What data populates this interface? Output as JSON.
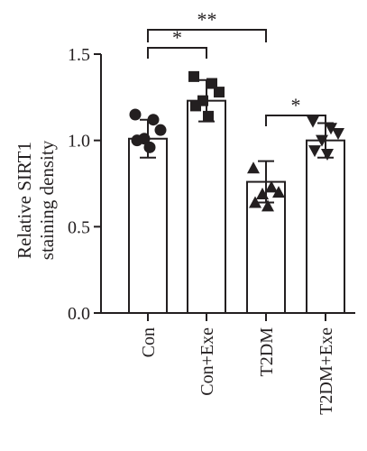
{
  "chart_data": {
    "type": "bar",
    "categories": [
      "Con",
      "Con+Exe",
      "T2DM",
      "T2DM+Exe"
    ],
    "values": [
      1.01,
      1.23,
      0.76,
      1.0
    ],
    "errors": [
      0.11,
      0.12,
      0.12,
      0.1
    ],
    "points": [
      [
        1.15,
        1.12,
        1.06,
        1.01,
        1.0,
        0.96
      ],
      [
        1.37,
        1.33,
        1.28,
        1.23,
        1.2,
        1.14
      ],
      [
        0.84,
        0.73,
        0.7,
        0.69,
        0.64,
        0.62
      ],
      [
        1.11,
        1.07,
        1.04,
        1.0,
        0.94,
        0.92
      ]
    ],
    "markers": [
      "circle",
      "square",
      "triangle-up",
      "triangle-down"
    ],
    "ylabel_lines": [
      "Relative SIRT1",
      "staining density"
    ],
    "ylim": [
      0.0,
      1.5
    ],
    "yticks": [
      "0.0",
      "0.5",
      "1.0",
      "1.5"
    ],
    "significance": [
      {
        "from": 0,
        "to": 1,
        "label": "*",
        "level": 1
      },
      {
        "from": 0,
        "to": 2,
        "label": "**",
        "level": 2
      },
      {
        "from": 2,
        "to": 3,
        "label": "*",
        "level": 1
      }
    ],
    "color": "#231f20",
    "grid": false,
    "legend": "none"
  }
}
